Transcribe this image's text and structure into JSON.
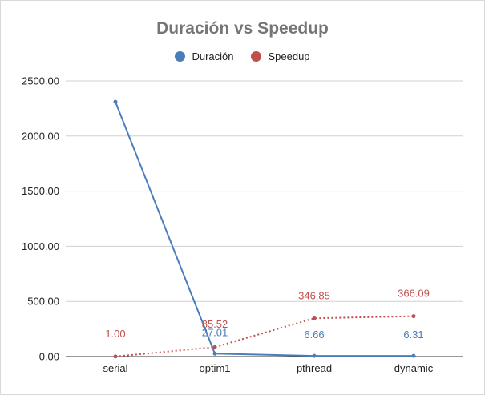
{
  "chart_data": {
    "type": "line",
    "title": "Duración vs Speedup",
    "categories": [
      "serial",
      "optim1",
      "pthread",
      "dynamic"
    ],
    "ylim": [
      0,
      2500
    ],
    "y_ticks": [
      "0.00",
      "500.00",
      "1000.00",
      "1500.00",
      "2000.00",
      "2500.00"
    ],
    "y_tick_values": [
      0,
      500,
      1000,
      1500,
      2000,
      2500
    ],
    "grid": true,
    "legend_position": "top",
    "series": [
      {
        "name": "Duración",
        "color": "#4a7ebb",
        "line_style": "solid",
        "values": [
          2310,
          27.01,
          6.66,
          6.31
        ],
        "labels": [
          "",
          "27.01",
          "6.66",
          "6.31"
        ]
      },
      {
        "name": "Speedup",
        "color": "#c0504d",
        "line_style": "dotted",
        "values": [
          1.0,
          85.52,
          346.85,
          366.09
        ],
        "labels": [
          "1.00",
          "85.52",
          "346.85",
          "366.09"
        ]
      }
    ]
  }
}
